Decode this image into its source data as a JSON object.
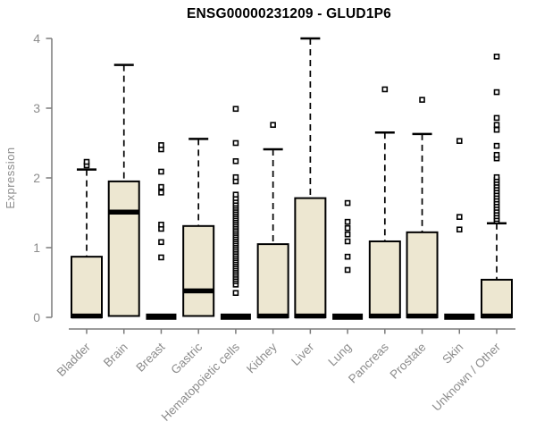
{
  "title": "ENSG00000231209 - GLUD1P6",
  "colors": {
    "box_fill": "#EDE7D1",
    "box_border": "#000000",
    "median": "#000000",
    "whisker": "#000000",
    "outlier_stroke": "#000000",
    "outlier_fill": "#ffffff",
    "axis": "#7a7a7a",
    "tick_label": "#8c8c8c",
    "title_color": "#000000"
  },
  "chart_data": {
    "type": "boxplot",
    "title": "ENSG00000231209 - GLUD1P6",
    "xlabel": "",
    "ylabel": "Expression",
    "ylim": [
      0,
      4
    ],
    "yticks": [
      0,
      1,
      2,
      3,
      4
    ],
    "grid": false,
    "legend": "none",
    "categories": [
      "Bladder",
      "Brain",
      "Breast",
      "Gastric",
      "Hematopoietic cells",
      "Kidney",
      "Liver",
      "Lung",
      "Pancreas",
      "Prostate",
      "Skin",
      "Unknown / Other"
    ],
    "series": [
      {
        "name": "Bladder",
        "whisker_low": 0,
        "q1": 0,
        "median": 0.02,
        "q3": 0.87,
        "whisker_high": 2.12,
        "outliers": [
          2.18,
          2.23
        ]
      },
      {
        "name": "Brain",
        "whisker_low": 0,
        "q1": 0.02,
        "median": 1.51,
        "q3": 1.95,
        "whisker_high": 3.62,
        "outliers": []
      },
      {
        "name": "Breast",
        "whisker_low": 0,
        "q1": 0,
        "median": 0.01,
        "q3": 0.02,
        "whisker_high": 0.02,
        "outliers": [
          0.86,
          1.08,
          1.27,
          1.33,
          1.79,
          1.87,
          2.09,
          2.41,
          2.47
        ]
      },
      {
        "name": "Gastric",
        "whisker_low": 0,
        "q1": 0.02,
        "median": 0.38,
        "q3": 1.31,
        "whisker_high": 2.56,
        "outliers": []
      },
      {
        "name": "Hematopoietic cells",
        "whisker_low": 0,
        "q1": 0,
        "median": 0.01,
        "q3": 0.02,
        "whisker_high": 0.03,
        "outliers": [
          0.35,
          0.47,
          0.52,
          0.55,
          0.58,
          0.61,
          0.64,
          0.67,
          0.7,
          0.73,
          0.76,
          0.79,
          0.82,
          0.85,
          0.88,
          0.91,
          0.94,
          0.97,
          1.0,
          1.03,
          1.06,
          1.09,
          1.12,
          1.15,
          1.18,
          1.21,
          1.24,
          1.27,
          1.3,
          1.33,
          1.36,
          1.39,
          1.42,
          1.45,
          1.48,
          1.51,
          1.54,
          1.57,
          1.6,
          1.63,
          1.67,
          1.71,
          1.76,
          1.95,
          2.01,
          2.24,
          2.5,
          2.99
        ]
      },
      {
        "name": "Kidney",
        "whisker_low": 0,
        "q1": 0,
        "median": 0.02,
        "q3": 1.05,
        "whisker_high": 2.41,
        "outliers": [
          2.76
        ]
      },
      {
        "name": "Liver",
        "whisker_low": 0,
        "q1": 0,
        "median": 0.02,
        "q3": 1.71,
        "whisker_high": 4.0,
        "outliers": []
      },
      {
        "name": "Lung",
        "whisker_low": 0,
        "q1": 0,
        "median": 0.01,
        "q3": 0.02,
        "whisker_high": 0.03,
        "outliers": [
          0.68,
          0.87,
          1.09,
          1.19,
          1.28,
          1.37,
          1.64
        ]
      },
      {
        "name": "Pancreas",
        "whisker_low": 0,
        "q1": 0,
        "median": 0.02,
        "q3": 1.09,
        "whisker_high": 2.65,
        "outliers": [
          3.27
        ]
      },
      {
        "name": "Prostate",
        "whisker_low": 0,
        "q1": 0,
        "median": 0.02,
        "q3": 1.22,
        "whisker_high": 2.63,
        "outliers": [
          3.12
        ]
      },
      {
        "name": "Skin",
        "whisker_low": 0,
        "q1": 0,
        "median": 0.01,
        "q3": 0.02,
        "whisker_high": 0.03,
        "outliers": [
          1.26,
          1.44,
          2.53
        ]
      },
      {
        "name": "Unknown / Other",
        "whisker_low": 0,
        "q1": 0,
        "median": 0.02,
        "q3": 0.54,
        "whisker_high": 1.35,
        "outliers": [
          1.38,
          1.41,
          1.45,
          1.49,
          1.53,
          1.57,
          1.61,
          1.65,
          1.69,
          1.73,
          1.77,
          1.81,
          1.85,
          1.89,
          1.93,
          1.97,
          2.01,
          2.28,
          2.33,
          2.46,
          2.69,
          2.76,
          2.86,
          3.23,
          3.74
        ]
      }
    ]
  }
}
